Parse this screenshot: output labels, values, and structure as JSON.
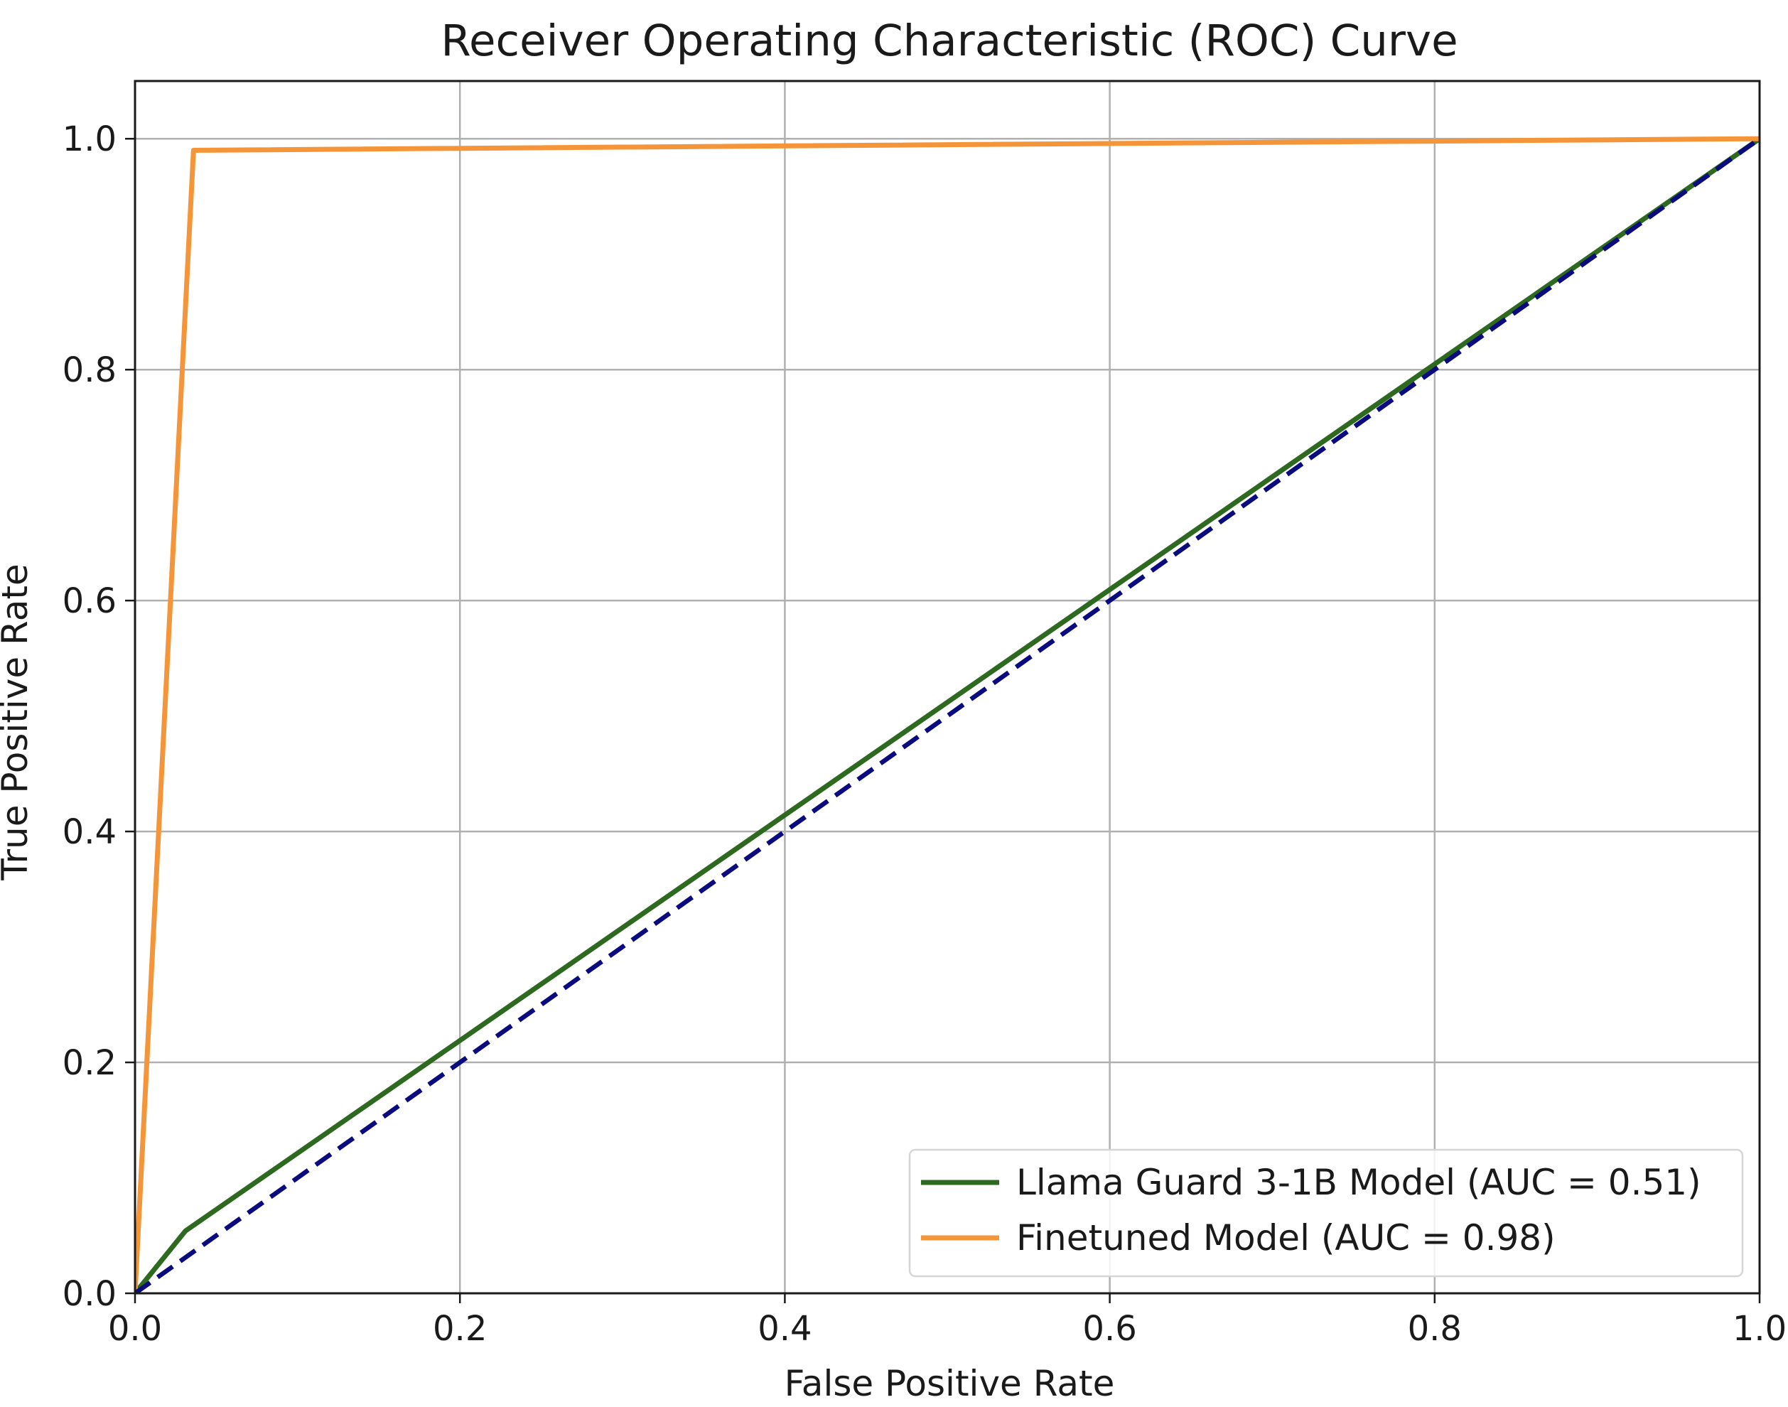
{
  "chart_data": {
    "type": "line",
    "title": "Receiver Operating Characteristic (ROC) Curve",
    "xlabel": "False Positive Rate",
    "ylabel": "True Positive Rate",
    "xlim": [
      0.0,
      1.0
    ],
    "ylim": [
      0.0,
      1.05
    ],
    "x_ticks": [
      0.0,
      0.2,
      0.4,
      0.6,
      0.8,
      1.0
    ],
    "x_tick_labels": [
      "0.0",
      "0.2",
      "0.4",
      "0.6",
      "0.8",
      "1.0"
    ],
    "y_ticks": [
      0.0,
      0.2,
      0.4,
      0.6,
      0.8,
      1.0
    ],
    "y_tick_labels": [
      "0.0",
      "0.2",
      "0.4",
      "0.6",
      "0.8",
      "1.0"
    ],
    "grid": true,
    "legend_position": "lower-right",
    "series": [
      {
        "name": "Llama Guard 3-1B Model (AUC = 0.51)",
        "color": "#2d6a1f",
        "dash": "solid",
        "in_legend": true,
        "x": [
          0.0,
          0.031,
          1.0
        ],
        "y": [
          0.0,
          0.054,
          1.0
        ]
      },
      {
        "name": "Finetuned Model (AUC = 0.98)",
        "color": "#f5953a",
        "dash": "solid",
        "in_legend": true,
        "x": [
          0.0,
          0.036,
          1.0
        ],
        "y": [
          0.0,
          0.99,
          1.0
        ]
      },
      {
        "name": "Random Classifier",
        "color": "#0b0b80",
        "dash": "dashed",
        "in_legend": false,
        "x": [
          0.0,
          1.0
        ],
        "y": [
          0.0,
          1.0
        ]
      }
    ]
  }
}
